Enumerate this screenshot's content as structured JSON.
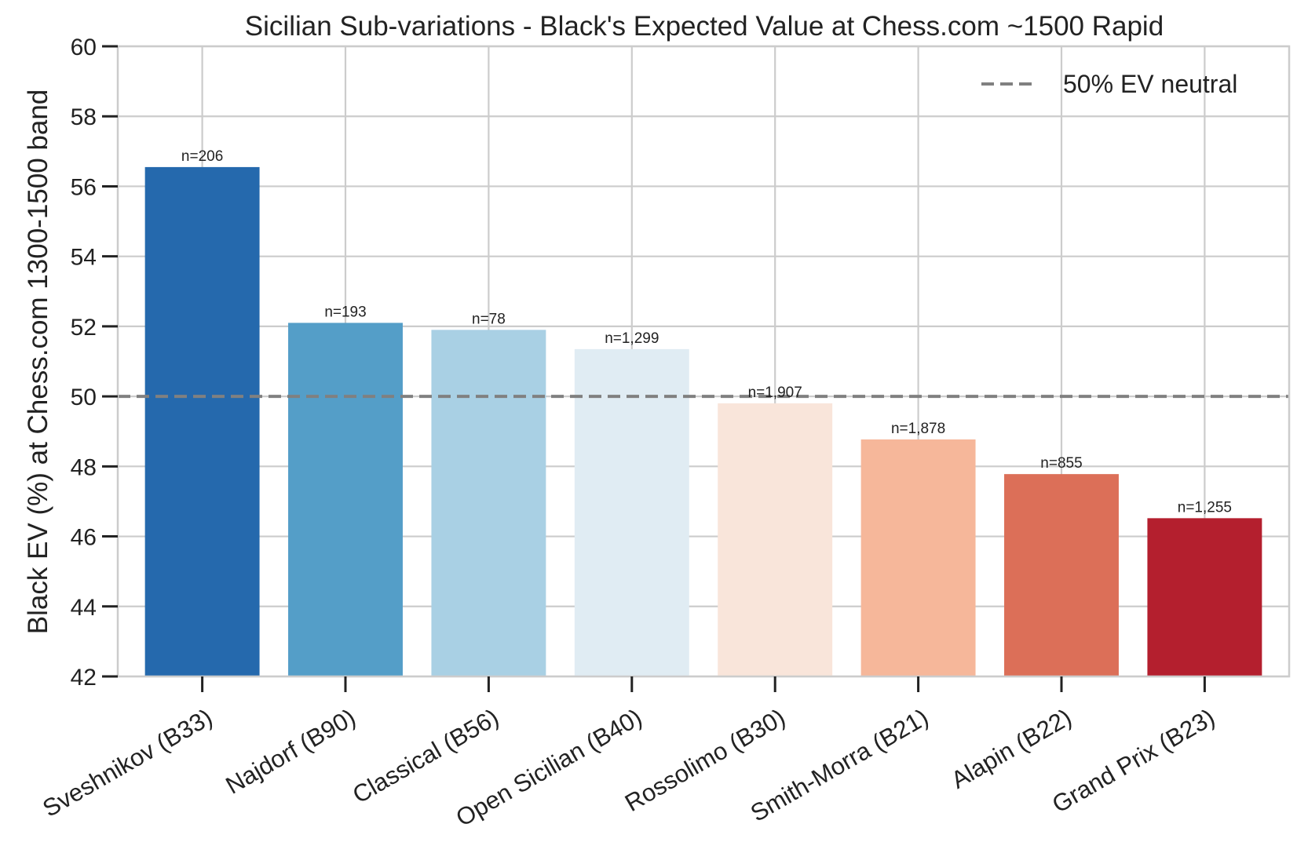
{
  "chart_data": {
    "type": "bar",
    "title": "Sicilian Sub-variations - Black's Expected Value at Chess.com ~1500 Rapid",
    "xlabel": "",
    "ylabel": "Black EV (%)  at Chess.com 1300-1500 band",
    "ylim": [
      42,
      60
    ],
    "yticks": [
      42,
      44,
      46,
      48,
      50,
      52,
      54,
      56,
      58,
      60
    ],
    "grid": true,
    "categories": [
      "Sveshnikov (B33)",
      "Najdorf (B90)",
      "Classical (B56)",
      "Open Sicilian (B40)",
      "Rossolimo (B30)",
      "Smith-Morra (B21)",
      "Alapin (B22)",
      "Grand Prix (B23)"
    ],
    "values": [
      56.55,
      52.1,
      51.9,
      51.35,
      49.8,
      48.77,
      47.78,
      46.52
    ],
    "data_labels": [
      "n=206",
      "n=193",
      "n=78",
      "n=1,299",
      "n=1,907",
      "n=1,878",
      "n=855",
      "n=1,255"
    ],
    "colors": [
      "#2569ad",
      "#549ec8",
      "#a9d0e4",
      "#e0ecf3",
      "#f9e5da",
      "#f6b79a",
      "#dc6f58",
      "#b41f2e"
    ],
    "reference_line": {
      "value": 50,
      "label": "50% EV neutral",
      "color": "#808080",
      "style": "dashed"
    },
    "legend": {
      "placement": "top-right",
      "entries": [
        "50% EV neutral"
      ]
    }
  }
}
